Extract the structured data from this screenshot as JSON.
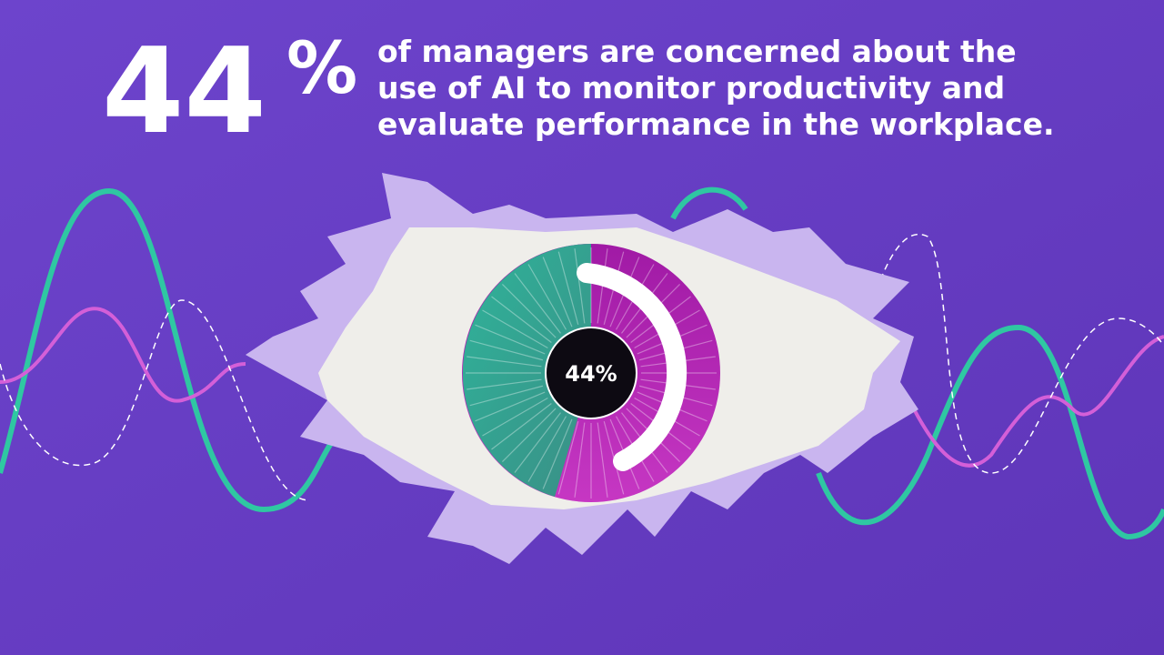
{
  "headline": {
    "number": "44",
    "unit": "%"
  },
  "description": [
    "of managers are concerned about the",
    "use of AI to monitor productivity and",
    "evaluate performance in the workplace."
  ],
  "eye_label": "44%"
}
